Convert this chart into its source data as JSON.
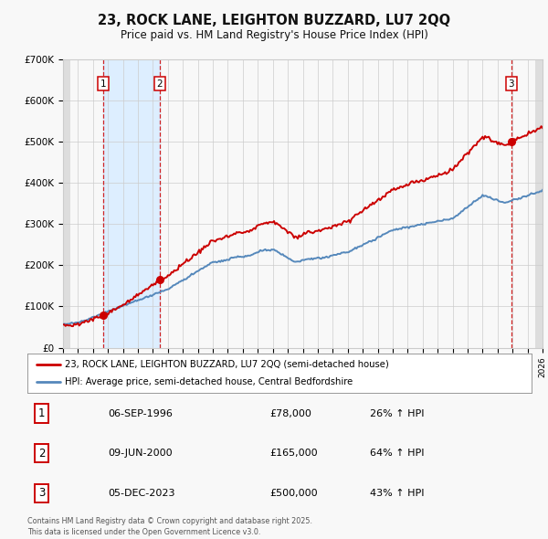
{
  "title_line1": "23, ROCK LANE, LEIGHTON BUZZARD, LU7 2QQ",
  "title_line2": "Price paid vs. HM Land Registry's House Price Index (HPI)",
  "ylim": [
    0,
    700000
  ],
  "yticks": [
    0,
    100000,
    200000,
    300000,
    400000,
    500000,
    600000,
    700000
  ],
  "ytick_labels": [
    "£0",
    "£100K",
    "£200K",
    "£300K",
    "£400K",
    "£500K",
    "£600K",
    "£700K"
  ],
  "x_start_year": 1994,
  "x_end_year": 2026,
  "transactions": [
    {
      "year": 1996.68,
      "price": 78000,
      "label": "1"
    },
    {
      "year": 2000.44,
      "price": 165000,
      "label": "2"
    },
    {
      "year": 2023.92,
      "price": 500000,
      "label": "3"
    }
  ],
  "legend_line1": "23, ROCK LANE, LEIGHTON BUZZARD, LU7 2QQ (semi-detached house)",
  "legend_line2": "HPI: Average price, semi-detached house, Central Bedfordshire",
  "table_rows": [
    {
      "num": "1",
      "date": "06-SEP-1996",
      "price": "£78,000",
      "hpi": "26% ↑ HPI"
    },
    {
      "num": "2",
      "date": "09-JUN-2000",
      "price": "£165,000",
      "hpi": "64% ↑ HPI"
    },
    {
      "num": "3",
      "date": "05-DEC-2023",
      "price": "£500,000",
      "hpi": "43% ↑ HPI"
    }
  ],
  "footer": "Contains HM Land Registry data © Crown copyright and database right 2025.\nThis data is licensed under the Open Government Licence v3.0.",
  "red_color": "#cc0000",
  "blue_color": "#5588bb",
  "shade_color": "#ddeeff",
  "bg_color": "#f8f8f8",
  "grid_color": "#cccccc",
  "hatch_color": "#dddddd"
}
